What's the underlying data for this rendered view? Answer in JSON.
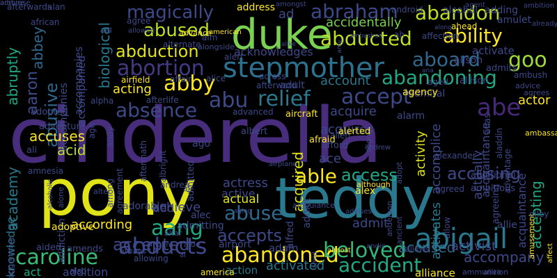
{
  "canvas": {
    "background": "#000000"
  },
  "palette": [
    "#440154",
    "#472d7b",
    "#3b528b",
    "#2c728e",
    "#21918c",
    "#28ae80",
    "#5ec962",
    "#addc30",
    "#fde725"
  ],
  "words": [
    {
      "text": "cinderella",
      "color": "#472d7b"
    },
    {
      "text": "pony",
      "color": "#dfe318"
    },
    {
      "text": "teddy",
      "color": "#2a788e"
    },
    {
      "text": "duke",
      "color": "#7ad151"
    },
    {
      "text": "stepmother",
      "color": "#2c728e"
    },
    {
      "text": "abigail",
      "color": "#2a788e"
    },
    {
      "text": "caroline",
      "color": "#3bbb75"
    },
    {
      "text": "abandoned",
      "color": "#fde725"
    },
    {
      "text": "beloved",
      "color": "#35b779"
    },
    {
      "text": "accident",
      "color": "#22a884"
    },
    {
      "text": "abducts",
      "color": "#3e4989"
    },
    {
      "text": "abandoning",
      "color": "#22a884"
    },
    {
      "text": "abduction",
      "color": "#dfe318"
    },
    {
      "text": "abortion",
      "color": "#443a83"
    },
    {
      "text": "magically",
      "color": "#3e4989"
    },
    {
      "text": "abused",
      "color": "#bddf26"
    },
    {
      "text": "abducted",
      "color": "#bddf26"
    },
    {
      "text": "ability",
      "color": "#fde725"
    },
    {
      "text": "abraham",
      "color": "#3e4989"
    },
    {
      "text": "abandon",
      "color": "#bddf26"
    },
    {
      "text": "aboard",
      "color": "#31688e"
    },
    {
      "text": "goo",
      "color": "#a0da39"
    },
    {
      "text": "biological",
      "color": "#2a788e"
    },
    {
      "text": "abby",
      "color": "#fde725"
    },
    {
      "text": "abu",
      "color": "#3e4989"
    },
    {
      "text": "relief",
      "color": "#2a788e"
    },
    {
      "text": "accept",
      "color": "#3e4989"
    },
    {
      "text": "abe",
      "color": "#482878"
    },
    {
      "text": "absence",
      "color": "#3e4989"
    },
    {
      "text": "able",
      "color": "#fde725"
    },
    {
      "text": "access",
      "color": "#22a884"
    },
    {
      "text": "abuse",
      "color": "#31688e"
    },
    {
      "text": "aang",
      "color": "#22a884"
    },
    {
      "text": "accepted",
      "color": "#3e4989"
    },
    {
      "text": "accepts",
      "color": "#3e4989"
    },
    {
      "text": "accusing",
      "color": "#3e4989"
    },
    {
      "text": "accepting",
      "color": "#22a884"
    },
    {
      "text": "academy",
      "color": "#2a788e"
    },
    {
      "text": "abbey",
      "color": "#31688e"
    },
    {
      "text": "abruptly",
      "color": "#22a884"
    },
    {
      "text": "aaron",
      "color": "#3e4989"
    },
    {
      "text": "abusive",
      "color": "#31688e"
    },
    {
      "text": "accomplice",
      "color": "#3e4989"
    },
    {
      "text": "accompany",
      "color": "#3e4989"
    },
    {
      "text": "accused",
      "color": "#31688e"
    },
    {
      "text": "activist",
      "color": "#3e4989"
    },
    {
      "text": "account",
      "color": "#2a788e"
    },
    {
      "text": "acquired",
      "color": "#dfe318"
    },
    {
      "text": "accidentally",
      "color": "#7ad151"
    },
    {
      "text": "activity",
      "color": "#dfe318"
    },
    {
      "text": "actress",
      "color": "#3e4989"
    },
    {
      "text": "acid",
      "color": "#bddf26"
    },
    {
      "text": "ace",
      "color": "#3e4989"
    },
    {
      "text": "accuses",
      "color": "#fde725"
    },
    {
      "text": "achieve",
      "color": "#3e4989"
    },
    {
      "text": "acting",
      "color": "#fde725"
    },
    {
      "text": "actor",
      "color": "#fde725"
    },
    {
      "text": "according",
      "color": "#fde725"
    },
    {
      "text": "acquire",
      "color": "#3e4989"
    },
    {
      "text": "acquires",
      "color": "#3e4989"
    },
    {
      "text": "accompanied",
      "color": "#3e4989"
    },
    {
      "text": "accompanies",
      "color": "#3e4989"
    },
    {
      "text": "acknowledge",
      "color": "#2a788e"
    },
    {
      "text": "acknowledges",
      "color": "#3e4989"
    },
    {
      "text": "acquaintance",
      "color": "#3e4989"
    },
    {
      "text": "active",
      "color": "#3e4989"
    },
    {
      "text": "actual",
      "color": "#dfe318"
    },
    {
      "text": "actually",
      "color": "#3e4989"
    },
    {
      "text": "admit",
      "color": "#3e4989"
    },
    {
      "text": "activated",
      "color": "#2a788e"
    },
    {
      "text": "activates",
      "color": "#2a788e"
    },
    {
      "text": "activate",
      "color": "#3e4989"
    },
    {
      "text": "action",
      "color": "#2a788e"
    },
    {
      "text": "adam",
      "color": "#3e4989"
    },
    {
      "text": "alliance",
      "color": "#fde725"
    },
    {
      "text": "addiction",
      "color": "#3e4989"
    },
    {
      "text": "adding",
      "color": "#3e4989"
    },
    {
      "text": "address",
      "color": "#fde725"
    },
    {
      "text": "alcohol",
      "color": "#3e4989"
    },
    {
      "text": "ad",
      "color": "#3e4989"
    },
    {
      "text": "acquaintance",
      "color": "#3e4989"
    },
    {
      "text": "accompanies",
      "color": "#3e4989"
    },
    {
      "text": "adoptive",
      "color": "#fde725"
    },
    {
      "text": "act",
      "color": "#22a884"
    },
    {
      "text": "aided",
      "color": "#3e4989"
    },
    {
      "text": "amends",
      "color": "#3e4989"
    },
    {
      "text": "addition",
      "color": "#3e4989"
    },
    {
      "text": "adopted",
      "color": "#3e4989"
    },
    {
      "text": "add",
      "color": "#3e4989"
    },
    {
      "text": "alec",
      "color": "#3e4989"
    },
    {
      "text": "admitting",
      "color": "#3e4989"
    },
    {
      "text": "adorable",
      "color": "#3e4989"
    },
    {
      "text": "airport",
      "color": "#3e4989"
    },
    {
      "text": "alex",
      "color": "#fde725"
    },
    {
      "text": "addict",
      "color": "#3e4989"
    },
    {
      "text": "alfred",
      "color": "#3e4989"
    },
    {
      "text": "allie",
      "color": "#3e4989"
    },
    {
      "text": "admiral",
      "color": "#3e4989"
    },
    {
      "text": "agency",
      "color": "#fde725"
    },
    {
      "text": "alison",
      "color": "#3e4989"
    },
    {
      "text": "adult",
      "color": "#3e4989"
    },
    {
      "text": "afterward",
      "color": "#3e4989"
    },
    {
      "text": "across",
      "color": "#3e4989"
    },
    {
      "text": "affair",
      "color": "#3e4989"
    },
    {
      "text": "airfield",
      "color": "#fde725"
    },
    {
      "text": "alice",
      "color": "#3e4989"
    },
    {
      "text": "alert",
      "color": "#3e4989"
    },
    {
      "text": "alpha",
      "color": "#3e4989"
    },
    {
      "text": "afterlife",
      "color": "#3e4989"
    },
    {
      "text": "advanced",
      "color": "#3e4989"
    },
    {
      "text": "aircraft",
      "color": "#fde725"
    },
    {
      "text": "admitted",
      "color": "#3e4989"
    },
    {
      "text": "alien",
      "color": "#3e4989"
    },
    {
      "text": "afraid",
      "color": "#fde725"
    },
    {
      "text": "alerted",
      "color": "#fde725"
    },
    {
      "text": "albert",
      "color": "#3e4989"
    },
    {
      "text": "afford",
      "color": "#3e4989"
    },
    {
      "text": "ago",
      "color": "#3e4989"
    },
    {
      "text": "adventure",
      "color": "#3e4989"
    },
    {
      "text": "ali",
      "color": "#3e4989"
    },
    {
      "text": "amnesia",
      "color": "#3e4989"
    },
    {
      "text": "age",
      "color": "#3e4989"
    },
    {
      "text": "andy",
      "color": "#3e4989"
    },
    {
      "text": "agreement",
      "color": "#3e4989"
    },
    {
      "text": "aftermath",
      "color": "#3e4989"
    },
    {
      "text": "albright",
      "color": "#3e4989"
    },
    {
      "text": "aggressive",
      "color": "#3e4989"
    },
    {
      "text": "afterwards",
      "color": "#3e4989"
    },
    {
      "text": "alan",
      "color": "#3e4989"
    },
    {
      "text": "african",
      "color": "#3e4989"
    },
    {
      "text": "aid",
      "color": "#3e4989"
    },
    {
      "text": "agree",
      "color": "#3e4989"
    },
    {
      "text": "advance",
      "color": "#fde725"
    },
    {
      "text": "alongside",
      "color": "#3e4989"
    },
    {
      "text": "aim",
      "color": "#3e4989"
    },
    {
      "text": "alternate",
      "color": "#3e4989"
    },
    {
      "text": "amongst",
      "color": "#3e4989"
    },
    {
      "text": "android",
      "color": "#3e4989"
    },
    {
      "text": "agent",
      "color": "#3e4989"
    },
    {
      "text": "ambition",
      "color": "#3e4989"
    },
    {
      "text": "amulet",
      "color": "#3e4989"
    },
    {
      "text": "ahead",
      "color": "#fde725"
    },
    {
      "text": "affection",
      "color": "#3e4989"
    },
    {
      "text": "ah",
      "color": "#3e4989"
    },
    {
      "text": "alarm",
      "color": "#3e4989"
    },
    {
      "text": "admits",
      "color": "#3e4989"
    },
    {
      "text": "aged",
      "color": "#3e4989"
    },
    {
      "text": "allison",
      "color": "#3e4989"
    },
    {
      "text": "ambush",
      "color": "#3e4989"
    },
    {
      "text": "advice",
      "color": "#3e4989"
    },
    {
      "text": "agrees",
      "color": "#3e4989"
    },
    {
      "text": "ambassador",
      "color": "#fde725"
    },
    {
      "text": "alias",
      "color": "#3e4989"
    },
    {
      "text": "aladdin",
      "color": "#3e4989"
    },
    {
      "text": "advantage",
      "color": "#3e4989"
    },
    {
      "text": "agreeing",
      "color": "#3e4989"
    },
    {
      "text": "additional",
      "color": "#3e4989"
    },
    {
      "text": "ambitious",
      "color": "#3e4989"
    },
    {
      "text": "agreed",
      "color": "#3e4989"
    },
    {
      "text": "amusement",
      "color": "#fde725"
    },
    {
      "text": "alley",
      "color": "#3e4989"
    },
    {
      "text": "affect",
      "color": "#fde725"
    },
    {
      "text": "ammunition",
      "color": "#3e4989"
    },
    {
      "text": "alive",
      "color": "#3e4989"
    },
    {
      "text": "allowing",
      "color": "#3e4989"
    },
    {
      "text": "america",
      "color": "#fde725"
    },
    {
      "text": "al",
      "color": "#3e4989"
    },
    {
      "text": "always",
      "color": "#3e4989"
    },
    {
      "text": "altar",
      "color": "#3e4989"
    },
    {
      "text": "amount",
      "color": "#3e4989"
    },
    {
      "text": "alter",
      "color": "#3e4989"
    },
    {
      "text": "among",
      "color": "#3e4989"
    },
    {
      "text": "alcoholic",
      "color": "#3e4989"
    },
    {
      "text": "alone",
      "color": "#3e4989"
    },
    {
      "text": "andrea",
      "color": "#3e4989"
    },
    {
      "text": "air",
      "color": "#3e4989"
    },
    {
      "text": "aide",
      "color": "#3e4989"
    },
    {
      "text": "aging",
      "color": "#3e4989"
    },
    {
      "text": "ambulance",
      "color": "#3e4989"
    },
    {
      "text": "amid",
      "color": "#3e4989"
    },
    {
      "text": "almost",
      "color": "#fde725"
    },
    {
      "text": "andie",
      "color": "#3e4989"
    },
    {
      "text": "allows",
      "color": "#3e4989"
    },
    {
      "text": "anderson",
      "color": "#3e4989"
    },
    {
      "text": "ancient",
      "color": "#3e4989"
    },
    {
      "text": "although",
      "color": "#fde725"
    },
    {
      "text": "advises",
      "color": "#3e4989"
    },
    {
      "text": "andrew",
      "color": "#3e4989"
    },
    {
      "text": "adopt",
      "color": "#3e4989"
    },
    {
      "text": "align",
      "color": "#3e4989"
    },
    {
      "text": "alexander",
      "color": "#3e4989"
    },
    {
      "text": "allow",
      "color": "#3e4989"
    },
    {
      "text": "airplane",
      "color": "#3e4989"
    },
    {
      "text": "also",
      "color": "#3e4989"
    },
    {
      "text": "allowed",
      "color": "#3e4989"
    },
    {
      "text": "ambushed",
      "color": "#3e4989"
    },
    {
      "text": "amy",
      "color": "#3e4989"
    },
    {
      "text": "already",
      "color": "#3e4989"
    },
    {
      "text": "along",
      "color": "#3e4989"
    },
    {
      "text": "ana",
      "color": "#3e4989"
    },
    {
      "text": "american",
      "color": "#fde725"
    },
    {
      "text": "alike",
      "color": "#3e4989"
    },
    {
      "text": "ambrose",
      "color": "#3e4989"
    },
    {
      "text": "admire",
      "color": "#3e4989"
    }
  ]
}
